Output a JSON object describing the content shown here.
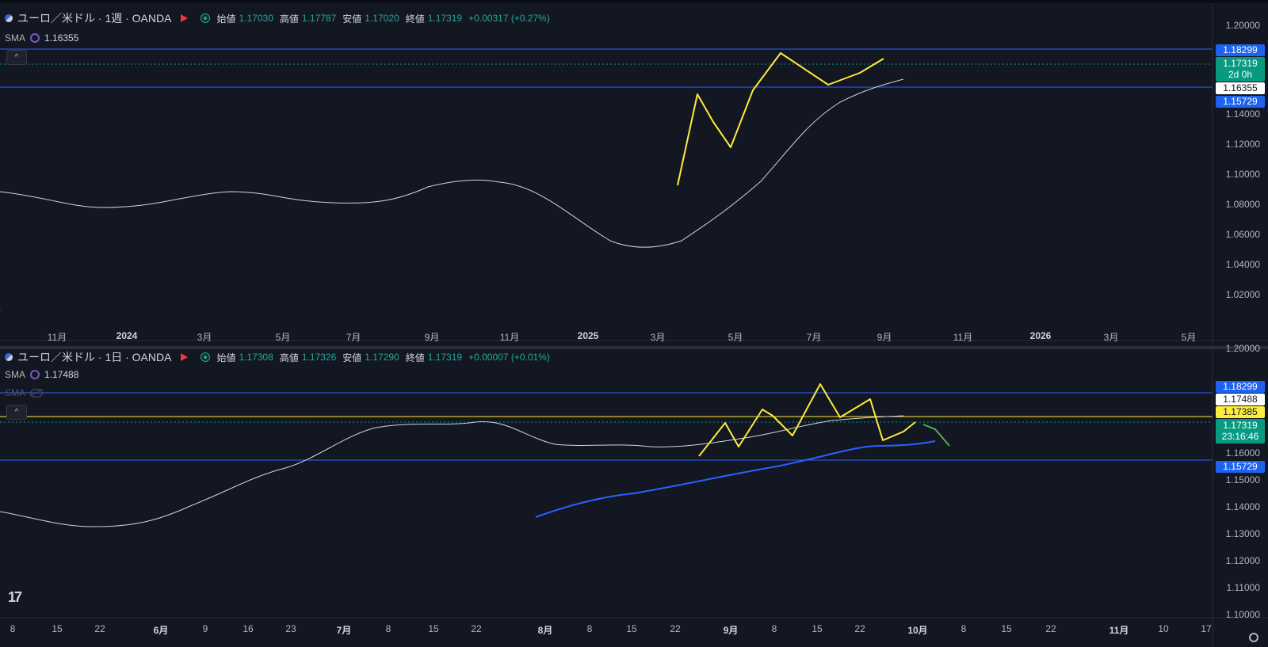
{
  "top": {
    "symbol": "ユーロ／米ドル · 1週 · OANDA",
    "open_label": "始値",
    "open": "1.17030",
    "high_label": "高値",
    "high": "1.17787",
    "low_label": "安値",
    "low": "1.17020",
    "close_label": "終値",
    "close": "1.17319",
    "change": "+0.00317 (+0.27%)",
    "sma_label": "SMA",
    "sma_value": "1.16355",
    "collapse_icon": "^",
    "y_ticks": [
      "1.20000",
      "1.14000",
      "1.12000",
      "1.10000",
      "1.08000",
      "1.06000",
      "1.04000",
      "1.02000"
    ],
    "price_tags": {
      "upper_line": "1.18299",
      "close": "1.17319",
      "countdown": "2d 0h",
      "sma": "1.16355",
      "lower_line": "1.15729"
    },
    "x_labels": [
      "11月",
      "2024",
      "3月",
      "5月",
      "7月",
      "9月",
      "11月",
      "2025",
      "3月",
      "5月",
      "7月",
      "9月",
      "11月",
      "2026",
      "3月",
      "5月"
    ]
  },
  "bottom": {
    "symbol": "ユーロ／米ドル · 1日 · OANDA",
    "open_label": "始値",
    "open": "1.17308",
    "high_label": "高値",
    "high": "1.17326",
    "low_label": "安値",
    "low": "1.17290",
    "close_label": "終値",
    "close": "1.17319",
    "change": "+0.00007 (+0.01%)",
    "sma_label": "SMA",
    "sma_value": "1.17488",
    "sma2_label": "SMA",
    "collapse_icon": "^",
    "y_ticks": [
      "1.20000",
      "1.16000",
      "1.15000",
      "1.14000",
      "1.13000",
      "1.12000",
      "1.11000",
      "1.10000"
    ],
    "price_tags": {
      "upper_line": "1.18299",
      "sma": "1.17488",
      "yellow_line": "1.17385",
      "close": "1.17319",
      "countdown": "23:16:46",
      "lower_line": "1.15729"
    },
    "x_labels": [
      "8",
      "15",
      "22",
      "6月",
      "9",
      "16",
      "23",
      "7月",
      "8",
      "15",
      "22",
      "8月",
      "8",
      "15",
      "22",
      "9月",
      "8",
      "15",
      "22",
      "10月",
      "8",
      "15",
      "22",
      "11月",
      "10",
      "17"
    ]
  },
  "colors": {
    "up": "#089981",
    "down": "#f23645",
    "sma": "#d1d4dc",
    "hline": "#2962ff",
    "annotation": "#ffeb3b",
    "forecast": "#4caf50",
    "sma_long": "#2962ff",
    "background": "#131722"
  },
  "icons": {
    "logo": "tradingview-logo",
    "settings": "gear-icon"
  }
}
